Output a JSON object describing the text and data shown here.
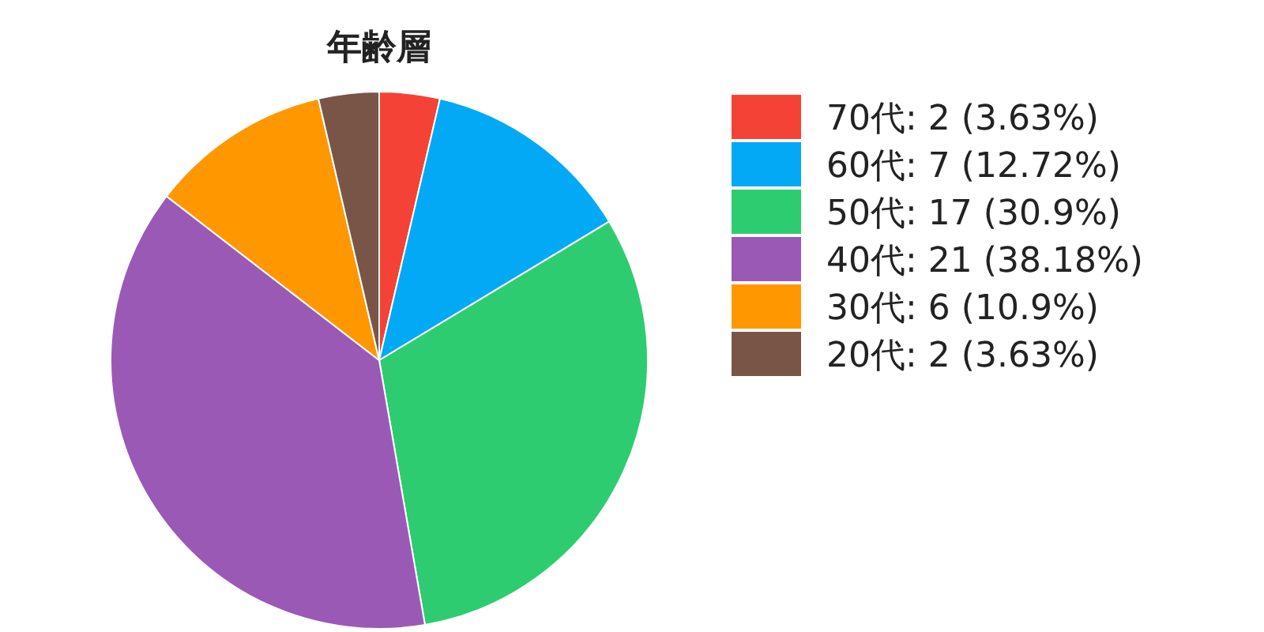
{
  "chart_data": {
    "type": "pie",
    "title": "年齢層",
    "categories": [
      "70代",
      "60代",
      "50代",
      "40代",
      "30代",
      "20代"
    ],
    "values": [
      2,
      7,
      17,
      21,
      6,
      2
    ],
    "value_labels": [
      "2 (3.63%)",
      "7 (12.72%)",
      "17 (30.9%)",
      "21 (38.18%)",
      "6 (10.9%)",
      "2 (3.63%)"
    ],
    "colors": [
      "#f44336",
      "#03a9f4",
      "#2ecc71",
      "#9b59b6",
      "#ff9800",
      "#795548"
    ],
    "legend": "right"
  }
}
